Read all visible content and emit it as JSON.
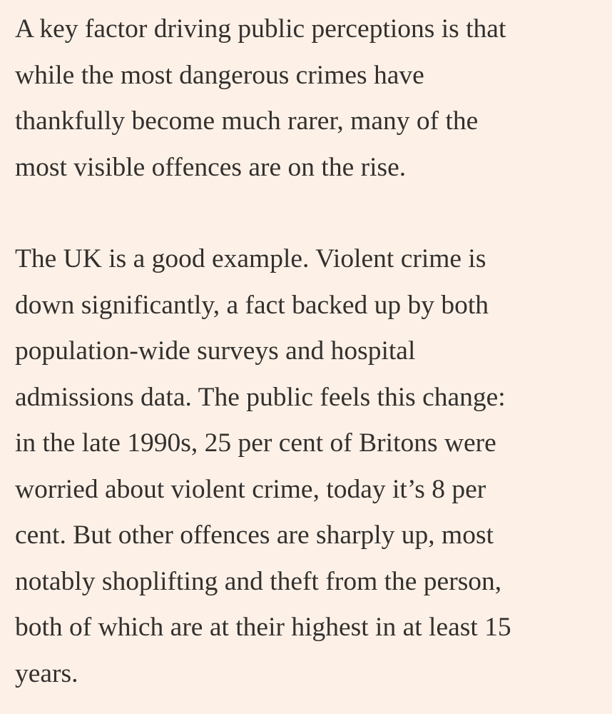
{
  "article": {
    "paragraphs": [
      {
        "lines": [
          "A key factor driving public perceptions is that",
          "while the most dangerous crimes have",
          "thankfully become much rarer, many of the",
          "most visible offences are on the rise."
        ]
      },
      {
        "lines": [
          "The UK is a good example. Violent crime is",
          "down significantly, a fact backed up by both",
          "population-wide surveys and hospital",
          "admissions data. The public feels this change:",
          "in the late 1990s, 25 per cent of Britons were",
          "worried about violent crime, today it’s 8 per",
          "cent. But other offences are sharply up, most",
          "notably shoplifting and theft from the person,",
          "both of which are at their highest in at least 15",
          "years."
        ]
      }
    ]
  }
}
